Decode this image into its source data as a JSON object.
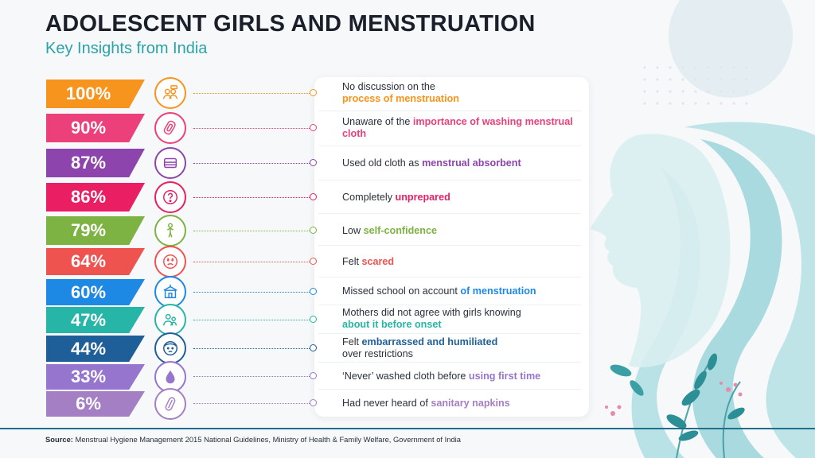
{
  "header": {
    "title": "ADOLESCENT GIRLS AND MENSTRUATION",
    "subtitle": "Key Insights from India"
  },
  "insights": [
    {
      "percent": "100%",
      "color": "#f7941d",
      "icon": "discussion-people-icon",
      "text_before": "No discussion on the",
      "highlight": "process of menstruation",
      "text_after": ""
    },
    {
      "percent": "90%",
      "color": "#ec407a",
      "icon": "cloth-pad-icon",
      "text_before": "Unaware of the ",
      "highlight": "importance of washing menstrual cloth",
      "text_after": ""
    },
    {
      "percent": "87%",
      "color": "#8e44ad",
      "icon": "folded-cloth-icon",
      "text_before": "Used old cloth as ",
      "highlight": "menstrual absorbent",
      "text_after": ""
    },
    {
      "percent": "86%",
      "color": "#e91e63",
      "icon": "question-icon",
      "text_before": "Completely ",
      "highlight": "unprepared",
      "text_after": ""
    },
    {
      "percent": "79%",
      "color": "#7cb342",
      "icon": "person-icon",
      "text_before": "Low ",
      "highlight": "self-confidence",
      "text_after": ""
    },
    {
      "percent": "64%",
      "color": "#ef5350",
      "icon": "scared-face-icon",
      "text_before": "Felt ",
      "highlight": "scared",
      "text_after": ""
    },
    {
      "percent": "60%",
      "color": "#1e88e5",
      "icon": "school-icon",
      "text_before": "Missed school on account ",
      "highlight": "of menstruation",
      "text_after": ""
    },
    {
      "percent": "47%",
      "color": "#26b5a6",
      "icon": "mother-daughter-icon",
      "text_before": "Mothers did not agree with girls knowing",
      "highlight": "about it before onset",
      "text_after": ""
    },
    {
      "percent": "44%",
      "color": "#1f5f99",
      "icon": "embarrassed-face-icon",
      "text_before": "Felt ",
      "highlight": "embarrassed and humiliated",
      "text_after": "over restrictions"
    },
    {
      "percent": "33%",
      "color": "#9575cd",
      "icon": "drop-icon",
      "text_before": "‘Never’ washed cloth before ",
      "highlight": "using first time",
      "text_after": ""
    },
    {
      "percent": "6%",
      "color": "#a47fc4",
      "icon": "napkin-icon",
      "text_before": "Had never heard of ",
      "highlight": "sanitary napkins",
      "text_after": ""
    }
  ],
  "footer": {
    "source_label": "Source:",
    "source_text": "Menstrual Hygiene Management 2015 National Guidelines, Ministry of Health & Family Welfare, Government of India"
  }
}
